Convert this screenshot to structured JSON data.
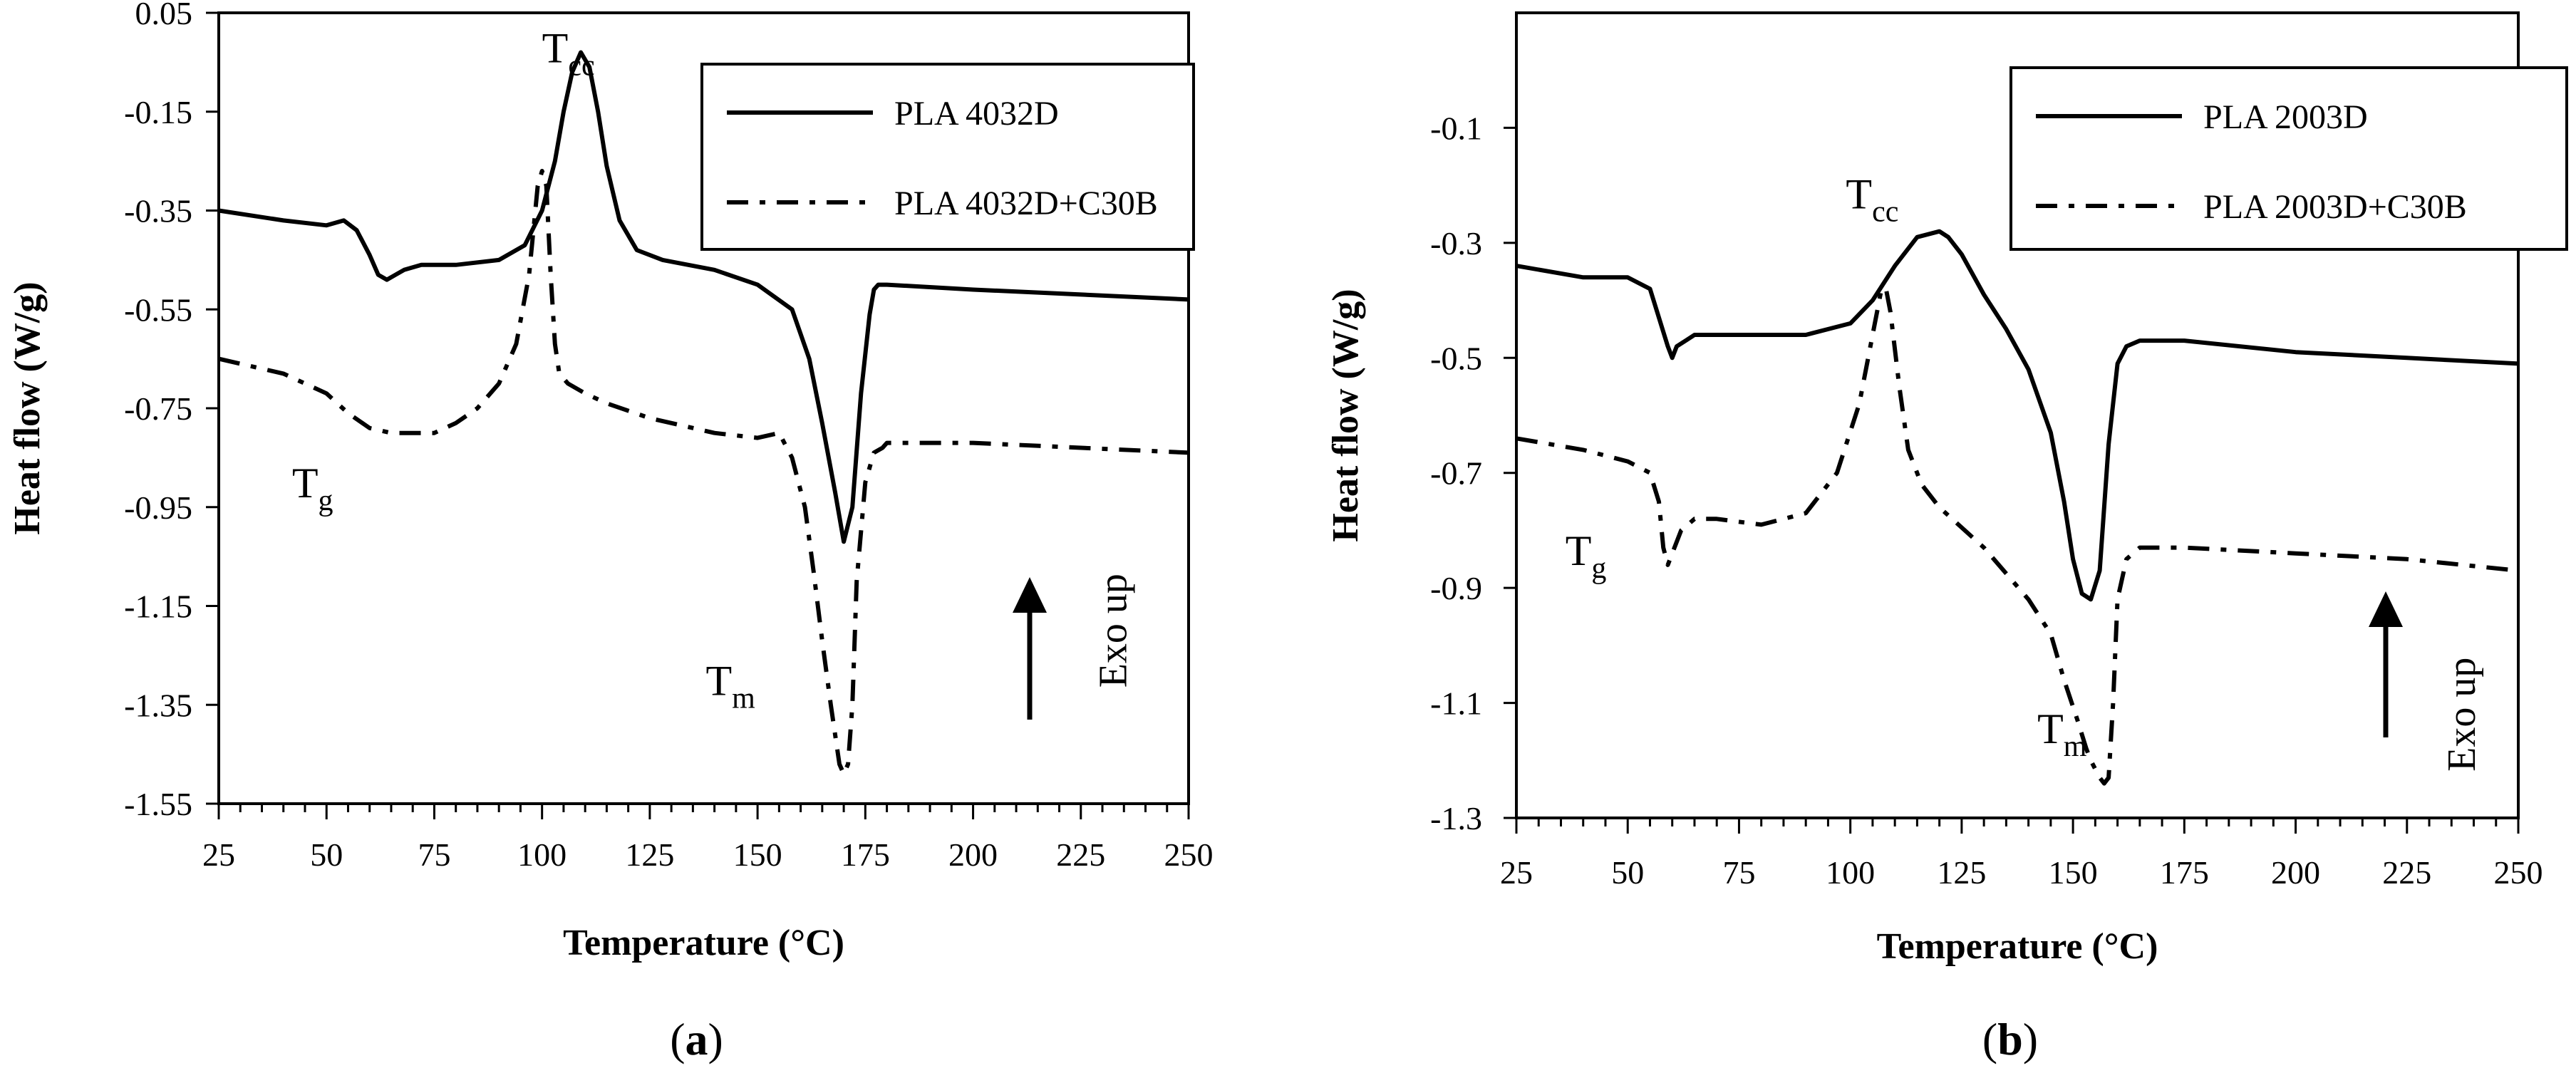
{
  "chart_data": [
    {
      "type": "line",
      "panel_label_prefix": "(",
      "panel_label_letter": "a",
      "panel_label_suffix": ")",
      "xlabel": "Temperature (°C)",
      "ylabel": "Heat flow (W/g)",
      "xlim": [
        25,
        250
      ],
      "ylim": [
        -1.55,
        0.05
      ],
      "xticks": [
        "25",
        "50",
        "75",
        "100",
        "125",
        "150",
        "175",
        "200",
        "225",
        "250"
      ],
      "xtick_values": [
        25,
        50,
        75,
        100,
        125,
        150,
        175,
        200,
        225,
        250
      ],
      "yticks": [
        "0.05",
        "-0.15",
        "-0.35",
        "-0.55",
        "-0.75",
        "-0.95",
        "-1.15",
        "-1.35",
        "-1.55"
      ],
      "ytick_values": [
        0.05,
        -0.15,
        -0.35,
        -0.55,
        -0.75,
        -0.95,
        -1.15,
        -1.35,
        -1.55
      ],
      "legend_position": "top-right",
      "series": [
        {
          "name": "PLA 4032D",
          "style": "solid",
          "x": [
            25,
            40,
            50,
            54,
            57,
            60,
            62,
            64,
            66,
            68,
            72,
            80,
            90,
            96,
            100,
            103,
            105,
            107,
            109,
            111,
            113,
            115,
            118,
            122,
            128,
            140,
            150,
            158,
            162,
            165,
            168,
            170,
            172,
            174,
            176,
            177,
            178,
            180,
            200,
            225,
            250
          ],
          "y": [
            -0.35,
            -0.37,
            -0.38,
            -0.37,
            -0.39,
            -0.44,
            -0.48,
            -0.49,
            -0.48,
            -0.47,
            -0.46,
            -0.46,
            -0.45,
            -0.42,
            -0.35,
            -0.25,
            -0.15,
            -0.07,
            -0.03,
            -0.06,
            -0.15,
            -0.26,
            -0.37,
            -0.43,
            -0.45,
            -0.47,
            -0.5,
            -0.55,
            -0.65,
            -0.78,
            -0.92,
            -1.02,
            -0.95,
            -0.72,
            -0.56,
            -0.51,
            -0.5,
            -0.5,
            -0.51,
            -0.52,
            -0.53
          ]
        },
        {
          "name": "PLA 4032D+C30B",
          "style": "dashdot",
          "x": [
            25,
            40,
            50,
            55,
            60,
            65,
            70,
            75,
            80,
            85,
            90,
            94,
            97,
            99,
            100,
            101,
            102,
            103,
            104,
            106,
            110,
            115,
            125,
            140,
            150,
            155,
            158,
            161,
            163,
            165,
            167,
            169,
            170,
            171,
            172,
            173,
            175,
            177,
            179,
            180,
            200,
            225,
            250
          ],
          "y": [
            -0.65,
            -0.68,
            -0.72,
            -0.76,
            -0.79,
            -0.8,
            -0.8,
            -0.8,
            -0.78,
            -0.75,
            -0.7,
            -0.62,
            -0.48,
            -0.3,
            -0.27,
            -0.3,
            -0.48,
            -0.62,
            -0.68,
            -0.7,
            -0.72,
            -0.74,
            -0.77,
            -0.8,
            -0.81,
            -0.8,
            -0.85,
            -0.95,
            -1.08,
            -1.22,
            -1.35,
            -1.47,
            -1.49,
            -1.47,
            -1.35,
            -1.1,
            -0.9,
            -0.84,
            -0.83,
            -0.82,
            -0.82,
            -0.83,
            -0.84
          ]
        }
      ],
      "annotations": [
        {
          "base": "T",
          "sub": "cc",
          "x": 100,
          "y": -0.05
        },
        {
          "base": "T",
          "sub": "g",
          "x": 42,
          "y": -0.93
        },
        {
          "base": "T",
          "sub": "m",
          "x": 138,
          "y": -1.33
        },
        {
          "text": "Exo up",
          "x": 224,
          "y": -1.2
        }
      ]
    },
    {
      "type": "line",
      "panel_label_prefix": "(",
      "panel_label_letter": "b",
      "panel_label_suffix": ")",
      "xlabel": "Temperature (°C)",
      "ylabel": "Heat flow (W/g)",
      "xlim": [
        25,
        250
      ],
      "ylim": [
        -1.3,
        0.1
      ],
      "xticks": [
        "25",
        "50",
        "75",
        "100",
        "125",
        "150",
        "175",
        "200",
        "225",
        "250"
      ],
      "xtick_values": [
        25,
        50,
        75,
        100,
        125,
        150,
        175,
        200,
        225,
        250
      ],
      "yticks": [
        "-0.1",
        "-0.3",
        "-0.5",
        "-0.7",
        "-0.9",
        "-1.1",
        "-1.3"
      ],
      "ytick_values": [
        -0.1,
        -0.3,
        -0.5,
        -0.7,
        -0.9,
        -1.1,
        -1.3
      ],
      "legend_position": "top-right",
      "series": [
        {
          "name": "PLA 2003D",
          "style": "solid",
          "x": [
            25,
            40,
            50,
            55,
            57,
            59,
            60,
            61,
            63,
            65,
            70,
            80,
            90,
            100,
            105,
            110,
            115,
            120,
            122,
            125,
            130,
            135,
            140,
            145,
            148,
            150,
            152,
            154,
            156,
            158,
            160,
            162,
            165,
            175,
            200,
            225,
            250
          ],
          "y": [
            -0.34,
            -0.36,
            -0.36,
            -0.38,
            -0.43,
            -0.48,
            -0.5,
            -0.48,
            -0.47,
            -0.46,
            -0.46,
            -0.46,
            -0.46,
            -0.44,
            -0.4,
            -0.34,
            -0.29,
            -0.28,
            -0.29,
            -0.32,
            -0.39,
            -0.45,
            -0.52,
            -0.63,
            -0.75,
            -0.85,
            -0.91,
            -0.92,
            -0.87,
            -0.65,
            -0.51,
            -0.48,
            -0.47,
            -0.47,
            -0.49,
            -0.5,
            -0.51
          ]
        },
        {
          "name": "PLA 2003D+C30B",
          "style": "dashdot",
          "x": [
            25,
            40,
            50,
            55,
            57,
            58,
            59,
            60,
            62,
            65,
            70,
            80,
            90,
            97,
            102,
            105,
            107,
            108,
            109,
            111,
            113,
            116,
            120,
            130,
            140,
            145,
            148,
            151,
            153,
            154,
            156,
            157,
            158,
            159,
            160,
            162,
            165,
            175,
            200,
            225,
            250
          ],
          "y": [
            -0.64,
            -0.66,
            -0.68,
            -0.7,
            -0.75,
            -0.83,
            -0.86,
            -0.84,
            -0.8,
            -0.78,
            -0.78,
            -0.79,
            -0.77,
            -0.7,
            -0.58,
            -0.46,
            -0.38,
            -0.38,
            -0.42,
            -0.55,
            -0.66,
            -0.72,
            -0.76,
            -0.83,
            -0.92,
            -0.98,
            -1.06,
            -1.13,
            -1.18,
            -1.2,
            -1.23,
            -1.24,
            -1.23,
            -1.1,
            -0.92,
            -0.85,
            -0.83,
            -0.83,
            -0.84,
            -0.85,
            -0.87
          ]
        }
      ],
      "annotations": [
        {
          "base": "T",
          "sub": "cc",
          "x": 99,
          "y": -0.24
        },
        {
          "base": "T",
          "sub": "g",
          "x": 36,
          "y": -0.86
        },
        {
          "base": "T",
          "sub": "m",
          "x": 142,
          "y": -1.17
        },
        {
          "text": "Exo up",
          "x": 229,
          "y": -1.12
        }
      ]
    }
  ]
}
